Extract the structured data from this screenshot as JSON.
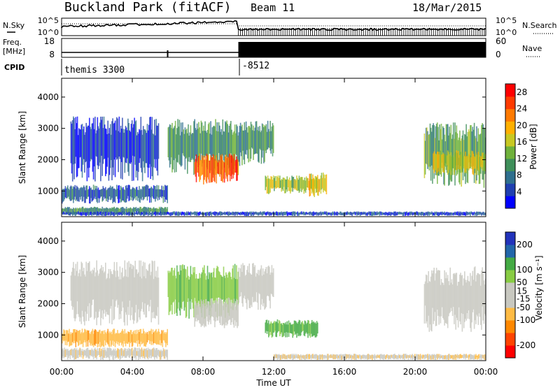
{
  "header": {
    "title": "Buckland Park (fitACF)",
    "beam": "Beam 11",
    "date": "18/Mar/2015"
  },
  "top_panels": {
    "nsky_label": "N.Sky",
    "nsearch_label": "N.Search",
    "noise_ticks": [
      "10^5",
      "10^0"
    ],
    "noise_ticks_right": [
      "10^5",
      "10^0"
    ],
    "freq_label_line1": "Freq.",
    "freq_label_line2": "[MHz]",
    "freq_ticks": [
      "18",
      "8"
    ],
    "nave_label": "Nave",
    "nave_ticks": [
      "60",
      "0"
    ],
    "cpid_label": "CPID",
    "cpid_values": [
      "themis 3300",
      "-8512"
    ]
  },
  "colors": {
    "power_scale": [
      "#0000ff",
      "#1f3fb0",
      "#2e6f8e",
      "#3f8f5a",
      "#6fb13b",
      "#c8c822",
      "#ffb000",
      "#ff7a00",
      "#ff3b00",
      "#ff0000"
    ],
    "velocity_scale": [
      "#ff0000",
      "#ff4400",
      "#ff8800",
      "#ffbb44",
      "#c8c8c0",
      "#c8c8c0",
      "#88cc44",
      "#44aa44",
      "#2266aa",
      "#2233bb"
    ]
  },
  "chart_data": [
    {
      "type": "heatmap",
      "name": "power",
      "ylabel": "Slant Range [km]",
      "xlabel": "Time UT",
      "x_ticks": [
        "00:00",
        "04:00",
        "08:00",
        "12:00",
        "16:00",
        "20:00",
        "00:00"
      ],
      "y_ticks": [
        1000,
        2000,
        3000,
        4000
      ],
      "ylim": [
        180,
        4600
      ],
      "xlim_hours": [
        0,
        24
      ],
      "colorbar_label": "Power [dB]",
      "colorbar_ticks": [
        4,
        8,
        12,
        16,
        20,
        24,
        28
      ],
      "colorbar_range": [
        0,
        30
      ],
      "regions": [
        {
          "t": [
            0,
            6
          ],
          "r": [
            600,
            1200
          ],
          "v": 6
        },
        {
          "t": [
            0,
            6
          ],
          "r": [
            250,
            500
          ],
          "v": 10
        },
        {
          "t": [
            0.5,
            5.5
          ],
          "r": [
            1300,
            3400
          ],
          "v": 4
        },
        {
          "t": [
            6,
            10
          ],
          "r": [
            1500,
            3300
          ],
          "v": 10
        },
        {
          "t": [
            7.5,
            10
          ],
          "r": [
            1200,
            2200
          ],
          "v": 24
        },
        {
          "t": [
            10,
            12
          ],
          "r": [
            1800,
            3300
          ],
          "v": 10
        },
        {
          "t": [
            11.5,
            14.5
          ],
          "r": [
            900,
            1500
          ],
          "v": 15
        },
        {
          "t": [
            14,
            15
          ],
          "r": [
            800,
            1600
          ],
          "v": 18
        },
        {
          "t": [
            20.5,
            24
          ],
          "r": [
            1100,
            3200
          ],
          "v": 12
        },
        {
          "t": [
            21,
            24
          ],
          "r": [
            1500,
            2300
          ],
          "v": 16
        },
        {
          "t": [
            0,
            24
          ],
          "r": [
            200,
            350
          ],
          "v": 5
        }
      ]
    },
    {
      "type": "heatmap",
      "name": "velocity",
      "ylabel": "Slant Range [km]",
      "xlabel": "Time UT",
      "x_ticks": [
        "00:00",
        "04:00",
        "08:00",
        "12:00",
        "16:00",
        "20:00",
        "00:00"
      ],
      "y_ticks": [
        1000,
        2000,
        3000,
        4000
      ],
      "ylim": [
        180,
        4600
      ],
      "xlim_hours": [
        0,
        24
      ],
      "colorbar_label": "Velocity [m s⁻¹]",
      "colorbar_ticks": [
        200,
        100,
        50,
        15,
        -15,
        -50,
        -100,
        -200
      ],
      "colorbar_range": [
        -250,
        250
      ],
      "regions": [
        {
          "t": [
            0,
            6
          ],
          "r": [
            600,
            1200
          ],
          "v": -80
        },
        {
          "t": [
            0,
            6
          ],
          "r": [
            200,
            600
          ],
          "v": -30
        },
        {
          "t": [
            0.5,
            5.5
          ],
          "r": [
            1300,
            3400
          ],
          "v": 20
        },
        {
          "t": [
            6,
            10
          ],
          "r": [
            1500,
            3300
          ],
          "v": 80
        },
        {
          "t": [
            7.5,
            10
          ],
          "r": [
            1200,
            2200
          ],
          "v": 0
        },
        {
          "t": [
            10,
            12
          ],
          "r": [
            1800,
            3300
          ],
          "v": 0
        },
        {
          "t": [
            11.5,
            14.5
          ],
          "r": [
            900,
            1500
          ],
          "v": 120
        },
        {
          "t": [
            20.5,
            24
          ],
          "r": [
            1100,
            3200
          ],
          "v": 0
        },
        {
          "t": [
            12,
            24
          ],
          "r": [
            200,
            400
          ],
          "v": -40
        }
      ]
    }
  ]
}
